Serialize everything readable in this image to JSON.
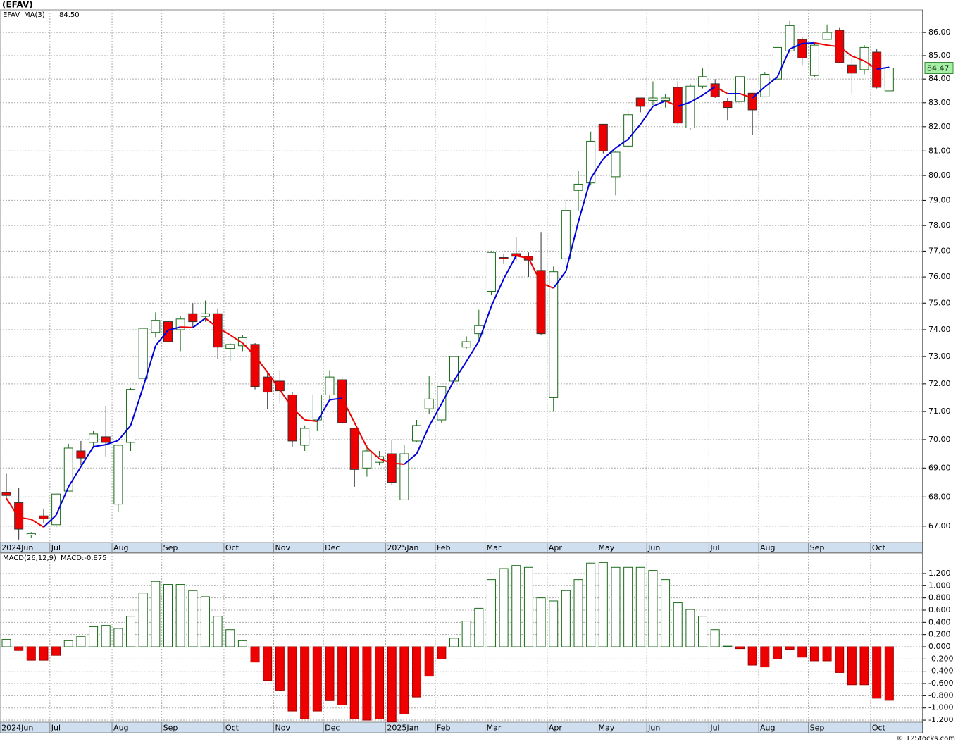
{
  "header": "(EFAV)",
  "footer": "© 12Stocks.com",
  "chart_data": [
    {
      "type": "candlestick",
      "log_scale": true,
      "grid": true,
      "xlim": [
        -0.51,
        73.7
      ],
      "ylim": [
        66.45,
        86.99
      ],
      "xticks": [
        {
          "value": -0.5,
          "label": "2024Jun"
        },
        {
          "value": 3.5,
          "label": "Jul"
        },
        {
          "value": 8.5,
          "label": "Aug"
        },
        {
          "value": 12.5,
          "label": "Sep"
        },
        {
          "value": 17.5,
          "label": "Oct"
        },
        {
          "value": 21.5,
          "label": "Nov"
        },
        {
          "value": 25.5,
          "label": "Dec"
        },
        {
          "value": 30.5,
          "label": "2025Jan"
        },
        {
          "value": 34.5,
          "label": "Feb"
        },
        {
          "value": 38.5,
          "label": "Mar"
        },
        {
          "value": 43.5,
          "label": "Apr"
        },
        {
          "value": 47.5,
          "label": "May"
        },
        {
          "value": 51.5,
          "label": "Jun"
        },
        {
          "value": 56.5,
          "label": "Jul"
        },
        {
          "value": 60.5,
          "label": "Aug"
        },
        {
          "value": 64.5,
          "label": "Sep"
        },
        {
          "value": 69.5,
          "label": "Oct"
        }
      ],
      "yticks": [
        {
          "value": 67,
          "label": "67.00"
        },
        {
          "value": 68,
          "label": "68.00"
        },
        {
          "value": 69,
          "label": "69.00"
        },
        {
          "value": 70,
          "label": "70.00"
        },
        {
          "value": 71,
          "label": "71.00"
        },
        {
          "value": 72,
          "label": "72.00"
        },
        {
          "value": 73,
          "label": "73.00"
        },
        {
          "value": 74,
          "label": "74.00"
        },
        {
          "value": 75,
          "label": "75.00"
        },
        {
          "value": 76,
          "label": "76.00"
        },
        {
          "value": 77,
          "label": "77.00"
        },
        {
          "value": 78,
          "label": "78.00"
        },
        {
          "value": 79,
          "label": "79.00"
        },
        {
          "value": 80,
          "label": "80.00"
        },
        {
          "value": 81,
          "label": "81.00"
        },
        {
          "value": 82,
          "label": "82.00"
        },
        {
          "value": 83,
          "label": "83.00"
        },
        {
          "value": 84,
          "label": "84.00"
        },
        {
          "value": 85,
          "label": "85.00"
        },
        {
          "value": 86,
          "label": "86.00"
        }
      ],
      "series": [
        {
          "name": "EFAV",
          "color": "#1a7a1a",
          "up_color": "#1a6b1a",
          "down_color": "#ee0000",
          "last_label": "84.47",
          "open": [
            68.15,
            67.8,
            66.7,
            67.35,
            67.05,
            68.2,
            69.6,
            69.9,
            70.1,
            67.75,
            69.9,
            72.2,
            73.9,
            74.3,
            74.0,
            74.6,
            74.5,
            74.6,
            73.3,
            73.4,
            73.45,
            72.25,
            72.1,
            71.6,
            69.8,
            70.7,
            71.6,
            72.15,
            70.4,
            69.0,
            69.2,
            69.5,
            67.9,
            69.95,
            71.1,
            70.7,
            72.1,
            73.35,
            73.85,
            75.45,
            76.75,
            76.9,
            76.8,
            76.25,
            71.5,
            76.7,
            79.4,
            79.7,
            82.1,
            79.95,
            81.2,
            83.2,
            83.1,
            83.1,
            83.65,
            81.95,
            83.7,
            83.8,
            83.05,
            83.05,
            83.4,
            83.25,
            84.0,
            85.2,
            85.7,
            84.15,
            85.7,
            86.1,
            84.6,
            84.4,
            85.15,
            83.5
          ],
          "high": [
            68.8,
            68.3,
            66.8,
            67.6,
            68.1,
            69.85,
            69.95,
            70.3,
            71.2,
            69.8,
            71.85,
            74.05,
            74.65,
            74.4,
            74.5,
            75.0,
            75.1,
            74.8,
            73.5,
            73.8,
            73.5,
            72.4,
            72.5,
            71.7,
            70.5,
            71.6,
            72.5,
            72.25,
            70.4,
            69.8,
            69.6,
            70.0,
            69.8,
            70.7,
            72.3,
            71.9,
            73.3,
            73.75,
            74.75,
            77.0,
            76.9,
            77.55,
            76.95,
            77.75,
            76.4,
            79.0,
            80.2,
            81.8,
            82.1,
            81.0,
            82.7,
            83.2,
            83.9,
            83.35,
            83.9,
            83.8,
            84.45,
            84.0,
            83.2,
            84.65,
            83.4,
            84.3,
            85.35,
            86.5,
            85.8,
            85.5,
            86.35,
            86.2,
            84.9,
            85.45,
            85.3,
            84.5
          ],
          "low": [
            67.9,
            66.55,
            66.6,
            67.1,
            66.95,
            68.2,
            69.1,
            69.7,
            69.4,
            67.5,
            69.6,
            72.2,
            73.7,
            73.5,
            73.2,
            74.1,
            74.3,
            72.9,
            72.85,
            73.2,
            71.8,
            71.1,
            71.3,
            69.75,
            69.6,
            70.3,
            71.4,
            70.55,
            68.35,
            68.7,
            69.1,
            68.4,
            67.9,
            69.9,
            70.9,
            70.6,
            72.0,
            73.3,
            73.6,
            75.3,
            76.5,
            76.6,
            76.0,
            73.8,
            71.0,
            76.5,
            78.6,
            79.6,
            80.9,
            79.2,
            81.1,
            82.6,
            82.9,
            82.8,
            82.1,
            81.85,
            83.6,
            83.2,
            82.25,
            82.95,
            81.65,
            83.25,
            84.0,
            85.1,
            84.6,
            84.1,
            85.7,
            84.7,
            83.35,
            84.2,
            83.6,
            83.5
          ],
          "close": [
            68.05,
            66.9,
            66.75,
            67.25,
            68.1,
            69.7,
            69.35,
            70.2,
            69.9,
            69.8,
            71.8,
            74.05,
            74.35,
            73.55,
            74.4,
            74.3,
            74.6,
            73.35,
            73.45,
            73.7,
            71.9,
            71.7,
            71.75,
            69.95,
            70.4,
            71.6,
            72.25,
            70.6,
            68.95,
            69.6,
            69.4,
            68.5,
            69.5,
            70.5,
            71.45,
            71.9,
            73.0,
            73.55,
            74.15,
            76.95,
            76.7,
            76.8,
            76.65,
            73.85,
            76.2,
            78.6,
            79.65,
            81.4,
            81.0,
            80.95,
            82.5,
            82.85,
            83.2,
            83.2,
            82.15,
            83.7,
            84.1,
            83.25,
            82.8,
            84.1,
            82.7,
            84.2,
            85.35,
            86.3,
            84.9,
            85.45,
            86.0,
            84.7,
            84.25,
            85.35,
            83.65,
            84.47
          ]
        },
        {
          "name": "MA(3)",
          "color": "#0000dd",
          "down_color": "#ee0000",
          "last_label": "84.50",
          "values": [
            67.95,
            67.3,
            67.23,
            66.97,
            67.37,
            68.35,
            69.05,
            69.75,
            69.82,
            69.97,
            70.5,
            71.88,
            73.4,
            73.98,
            74.1,
            74.08,
            74.43,
            74.08,
            73.8,
            73.5,
            73.02,
            72.43,
            71.78,
            71.13,
            70.7,
            70.65,
            71.42,
            71.48,
            70.6,
            69.72,
            69.32,
            69.17,
            69.13,
            69.5,
            70.48,
            71.28,
            72.12,
            72.82,
            73.57,
            74.88,
            75.93,
            76.82,
            76.72,
            75.77,
            75.57,
            76.22,
            78.15,
            79.88,
            80.68,
            81.12,
            81.48,
            82.1,
            82.85,
            83.08,
            82.85,
            83.02,
            83.32,
            83.68,
            83.38,
            83.38,
            83.2,
            83.67,
            84.08,
            85.28,
            85.52,
            85.55,
            85.45,
            85.38,
            84.98,
            84.77,
            84.42,
            84.5
          ]
        }
      ]
    },
    {
      "type": "bar",
      "grid": true,
      "name": "MACD(26,12,9)",
      "value_label": "MACD:-0.875",
      "color": "#1a6b1a",
      "down_color": "#ee0000",
      "label_color": "#0000cc",
      "xlim": [
        -0.51,
        73.7
      ],
      "ylim": [
        -1.234,
        1.534
      ],
      "xticks": [
        {
          "value": -0.5,
          "label": "2024Jun"
        },
        {
          "value": 3.5,
          "label": "Jul"
        },
        {
          "value": 8.5,
          "label": "Aug"
        },
        {
          "value": 12.5,
          "label": "Sep"
        },
        {
          "value": 17.5,
          "label": "Oct"
        },
        {
          "value": 21.5,
          "label": "Nov"
        },
        {
          "value": 25.5,
          "label": "Dec"
        },
        {
          "value": 30.5,
          "label": "2025Jan"
        },
        {
          "value": 34.5,
          "label": "Feb"
        },
        {
          "value": 38.5,
          "label": "Mar"
        },
        {
          "value": 43.5,
          "label": "Apr"
        },
        {
          "value": 47.5,
          "label": "May"
        },
        {
          "value": 51.5,
          "label": "Jun"
        },
        {
          "value": 56.5,
          "label": "Jul"
        },
        {
          "value": 60.5,
          "label": "Aug"
        },
        {
          "value": 64.5,
          "label": "Sep"
        },
        {
          "value": 69.5,
          "label": "Oct"
        }
      ],
      "yticks": [
        {
          "value": -1.2,
          "label": "-1.200"
        },
        {
          "value": -1.0,
          "label": "-1.000"
        },
        {
          "value": -0.8,
          "label": "-0.800"
        },
        {
          "value": -0.6,
          "label": "-0.600"
        },
        {
          "value": -0.4,
          "label": "-0.400"
        },
        {
          "value": -0.2,
          "label": "-0.200"
        },
        {
          "value": 0,
          "label": "0.000"
        },
        {
          "value": 0.2,
          "label": "0.200"
        },
        {
          "value": 0.4,
          "label": "0.400"
        },
        {
          "value": 0.6,
          "label": "0.600"
        },
        {
          "value": 0.8,
          "label": "0.800"
        },
        {
          "value": 1.0,
          "label": "1.000"
        },
        {
          "value": 1.2,
          "label": "1.200"
        }
      ],
      "values": [
        0.12,
        -0.06,
        -0.22,
        -0.22,
        -0.14,
        0.1,
        0.17,
        0.33,
        0.35,
        0.3,
        0.5,
        0.88,
        1.07,
        1.02,
        1.02,
        0.92,
        0.82,
        0.5,
        0.28,
        0.1,
        -0.25,
        -0.55,
        -0.72,
        -1.05,
        -1.18,
        -1.05,
        -0.88,
        -0.95,
        -1.18,
        -1.2,
        -1.18,
        -1.23,
        -1.1,
        -0.82,
        -0.48,
        -0.2,
        0.14,
        0.42,
        0.63,
        1.1,
        1.28,
        1.33,
        1.3,
        0.8,
        0.75,
        0.92,
        1.1,
        1.37,
        1.38,
        1.3,
        1.3,
        1.3,
        1.25,
        1.1,
        0.72,
        0.61,
        0.5,
        0.28,
        0.01,
        -0.03,
        -0.3,
        -0.33,
        -0.2,
        -0.04,
        -0.17,
        -0.23,
        -0.23,
        -0.42,
        -0.62,
        -0.62,
        -0.84,
        -0.875
      ]
    }
  ]
}
